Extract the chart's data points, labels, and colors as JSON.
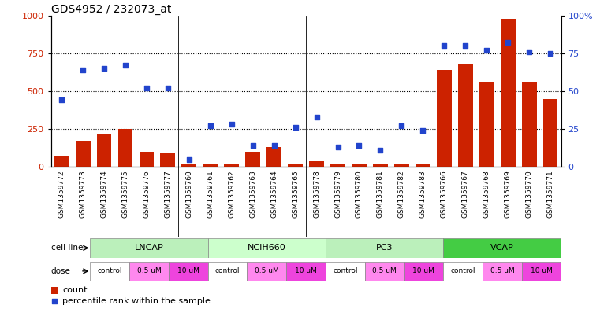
{
  "title": "GDS4952 / 232073_at",
  "samples": [
    "GSM1359772",
    "GSM1359773",
    "GSM1359774",
    "GSM1359775",
    "GSM1359776",
    "GSM1359777",
    "GSM1359760",
    "GSM1359761",
    "GSM1359762",
    "GSM1359763",
    "GSM1359764",
    "GSM1359765",
    "GSM1359778",
    "GSM1359779",
    "GSM1359780",
    "GSM1359781",
    "GSM1359782",
    "GSM1359783",
    "GSM1359766",
    "GSM1359767",
    "GSM1359768",
    "GSM1359769",
    "GSM1359770",
    "GSM1359771"
  ],
  "counts": [
    75,
    170,
    220,
    250,
    100,
    90,
    15,
    20,
    20,
    100,
    130,
    20,
    35,
    20,
    20,
    20,
    20,
    15,
    640,
    680,
    560,
    980,
    560,
    450
  ],
  "percentile_ranks": [
    44,
    64,
    65,
    67,
    52,
    52,
    5,
    27,
    28,
    14,
    14,
    26,
    33,
    13,
    14,
    11,
    27,
    24,
    80,
    80,
    77,
    82,
    76,
    75
  ],
  "cell_lines": [
    {
      "name": "LNCAP",
      "start": 0,
      "end": 6,
      "color": "#bbf0bb"
    },
    {
      "name": "NCIH660",
      "start": 6,
      "end": 12,
      "color": "#ccffcc"
    },
    {
      "name": "PC3",
      "start": 12,
      "end": 18,
      "color": "#bbf0bb"
    },
    {
      "name": "VCAP",
      "start": 18,
      "end": 24,
      "color": "#44cc44"
    }
  ],
  "dose_groups": [
    {
      "label": "control",
      "color": "#ffffff"
    },
    {
      "label": "0.5 uM",
      "color": "#ff88ee"
    },
    {
      "label": "10 uM",
      "color": "#ee44dd"
    }
  ],
  "bar_color": "#cc2200",
  "scatter_color": "#2244cc",
  "separator_color": "#888888",
  "grid_color": "#000000",
  "ylim_left": [
    0,
    1000
  ],
  "ylim_right": [
    0,
    100
  ],
  "yticks_left": [
    0,
    250,
    500,
    750,
    1000
  ],
  "yticks_right": [
    0,
    25,
    50,
    75,
    100
  ],
  "ytick_labels_right": [
    "0",
    "25",
    "50",
    "75",
    "100%"
  ],
  "background_color": "#ffffff",
  "title_fontsize": 10,
  "tick_label_fontsize": 6.5,
  "axis_label_color_left": "#cc2200",
  "axis_label_color_right": "#2244cc"
}
